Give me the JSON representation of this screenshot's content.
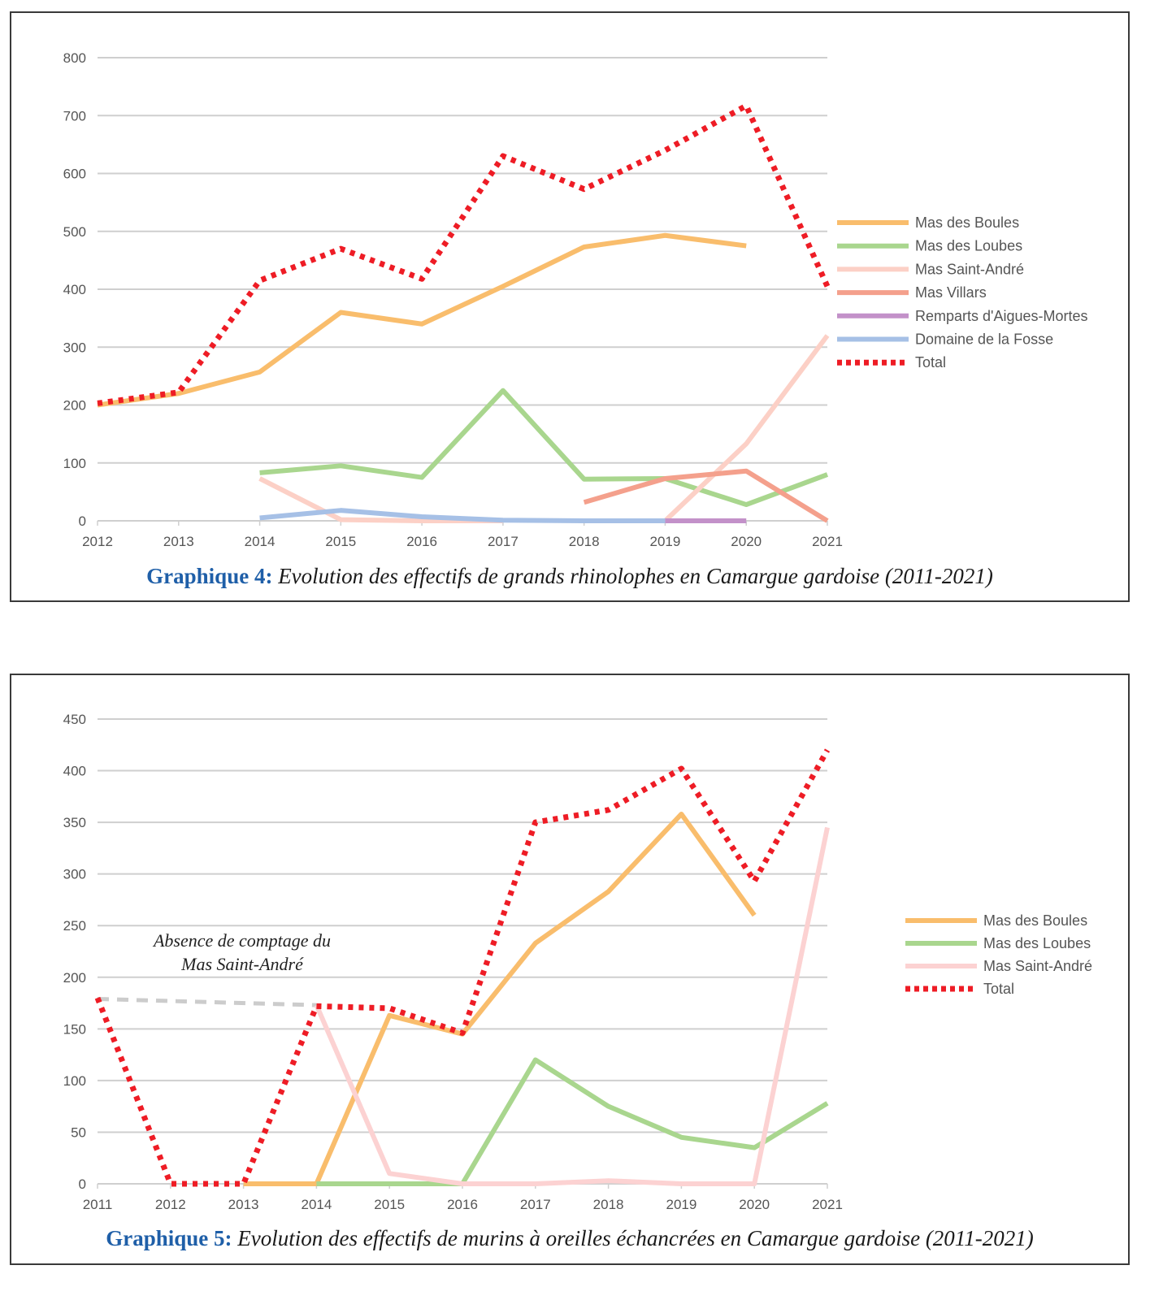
{
  "chart_data": [
    {
      "type": "line",
      "title": "",
      "caption_label": "Graphique 4:",
      "caption_text": " Evolution des effectifs de grands rhinolophes en Camargue gardoise (2011-2021)",
      "xlabel": "",
      "ylabel": "",
      "x": [
        2012,
        2013,
        2014,
        2015,
        2016,
        2017,
        2018,
        2019,
        2020,
        2021
      ],
      "x_tick_labels": [
        "2012",
        "2013",
        "2014",
        "2015",
        "2016",
        "2017",
        "2018",
        "2019",
        "2020",
        "2021"
      ],
      "y_ticks": [
        0,
        100,
        200,
        300,
        400,
        500,
        600,
        700,
        800
      ],
      "y_tick_labels": [
        "0",
        "100",
        "200",
        "300",
        "400",
        "500",
        "600",
        "700",
        "800"
      ],
      "ylim": [
        0,
        800
      ],
      "grid": true,
      "legend_position": "right",
      "series": [
        {
          "name": "Mas des Boules",
          "color": "#f9bd6c",
          "style": "solid",
          "values": [
            200,
            220,
            257,
            360,
            340,
            405,
            473,
            493,
            475,
            null
          ]
        },
        {
          "name": "Mas des Loubes",
          "color": "#a9d68e",
          "style": "solid",
          "values": [
            null,
            null,
            83,
            95,
            75,
            225,
            72,
            73,
            28,
            80
          ]
        },
        {
          "name": "Mas Saint-André",
          "color": "#fcd0c6",
          "style": "solid",
          "values": [
            null,
            null,
            73,
            2,
            0,
            0,
            null,
            0,
            133,
            320
          ]
        },
        {
          "name": "Mas Villars",
          "color": "#f4a08c",
          "style": "solid",
          "values": [
            null,
            null,
            null,
            null,
            null,
            null,
            32,
            73,
            86,
            0
          ]
        },
        {
          "name": "Remparts d'Aigues-Mortes",
          "color": "#c391c9",
          "style": "solid",
          "values": [
            null,
            null,
            null,
            null,
            null,
            null,
            null,
            0,
            0,
            null
          ]
        },
        {
          "name": "Domaine de la Fosse",
          "color": "#a6c0e6",
          "style": "solid",
          "values": [
            null,
            null,
            5,
            18,
            7,
            1,
            0,
            0,
            null,
            null
          ]
        },
        {
          "name": "Total",
          "color": "#ee1c25",
          "style": "dotted",
          "values": [
            203,
            222,
            415,
            470,
            418,
            630,
            573,
            640,
            717,
            405
          ]
        }
      ]
    },
    {
      "type": "line",
      "title": "",
      "caption_label": "Graphique 5:",
      "caption_text": " Evolution des effectifs de murins à oreilles échancrées en Camargue gardoise (2011-2021)",
      "xlabel": "",
      "ylabel": "",
      "x": [
        2011,
        2012,
        2013,
        2014,
        2015,
        2016,
        2017,
        2018,
        2019,
        2020,
        2021
      ],
      "x_tick_labels": [
        "2011",
        "2012",
        "2013",
        "2014",
        "2015",
        "2016",
        "2017",
        "2018",
        "2019",
        "2020",
        "2021"
      ],
      "y_ticks": [
        0,
        50,
        100,
        150,
        200,
        250,
        300,
        350,
        400,
        450
      ],
      "y_tick_labels": [
        "0",
        "50",
        "100",
        "150",
        "200",
        "250",
        "300",
        "350",
        "400",
        "450"
      ],
      "ylim": [
        0,
        450
      ],
      "grid": true,
      "legend_position": "right",
      "annotation": {
        "line1": "Absence de comptage du",
        "line2": "Mas Saint-André"
      },
      "series": [
        {
          "name": "Mas des Boules",
          "color": "#f9bd6c",
          "style": "solid",
          "values": [
            null,
            null,
            0,
            0,
            163,
            145,
            233,
            283,
            358,
            260,
            null
          ]
        },
        {
          "name": "Mas des Loubes",
          "color": "#a9d68e",
          "style": "solid",
          "values": [
            null,
            null,
            null,
            0,
            0,
            0,
            120,
            75,
            45,
            35,
            78
          ]
        },
        {
          "name": "Mas Saint-André",
          "color": "#fcd2d2",
          "style": "solid",
          "values": [
            null,
            null,
            null,
            173,
            10,
            0,
            0,
            3,
            0,
            0,
            345
          ]
        },
        {
          "name": "Total",
          "color": "#ee1c25",
          "style": "dotted",
          "values": [
            180,
            0,
            0,
            172,
            170,
            146,
            350,
            362,
            402,
            293,
            420
          ]
        }
      ],
      "extra_series": [
        {
          "name": "Estimation (absence de comptage)",
          "color": "#cccccc",
          "style": "dashed",
          "legend": false,
          "values": [
            179,
            null,
            null,
            173,
            null,
            null,
            null,
            null,
            null,
            null,
            null
          ]
        }
      ]
    }
  ]
}
